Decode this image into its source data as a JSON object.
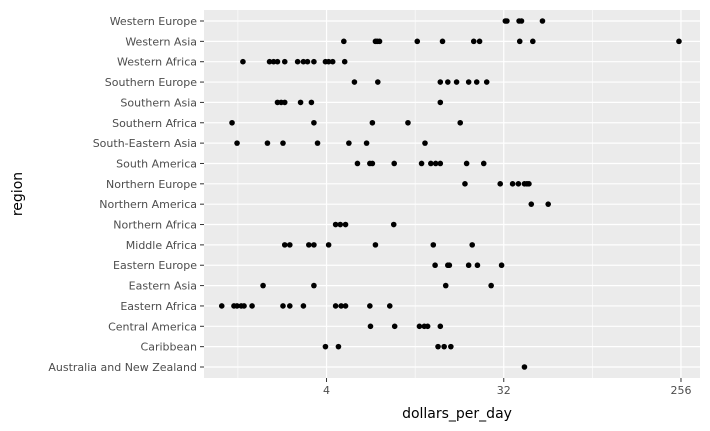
{
  "chart_data": {
    "type": "scatter",
    "xlabel": "dollars_per_day",
    "ylabel": "region",
    "x_scale": "log2",
    "xlim": [
      0.95,
      320
    ],
    "x_ticks": [
      4,
      32,
      256
    ],
    "grid": true,
    "colors": {
      "panel": "#ebebeb",
      "grid_major": "#ffffff",
      "point": "#000000",
      "tick_label": "#4d4d4d",
      "tick": "#333333"
    },
    "categories": [
      "Australia and New Zealand",
      "Caribbean",
      "Central America",
      "Eastern Africa",
      "Eastern Asia",
      "Eastern Europe",
      "Middle Africa",
      "Northern Africa",
      "Northern America",
      "Northern Europe",
      "South America",
      "South-Eastern Asia",
      "Southern Africa",
      "Southern Asia",
      "Southern Europe",
      "Western Africa",
      "Western Asia",
      "Western Europe"
    ],
    "values": {
      "Australia and New Zealand": [
        40.8
      ],
      "Caribbean": [
        3.95,
        4.6,
        14.8,
        15.9,
        17.2
      ],
      "Central America": [
        6.7,
        8.9,
        11.9,
        12.6,
        13.1,
        15.2
      ],
      "Eastern Africa": [
        1.17,
        1.35,
        1.4,
        1.47,
        1.52,
        1.67,
        2.4,
        2.6,
        3.05,
        4.45,
        4.75,
        5.0,
        6.65,
        8.4
      ],
      "Eastern Asia": [
        1.9,
        3.45,
        16.2,
        27.6
      ],
      "Eastern Europe": [
        14.3,
        16.6,
        16.9,
        21.2,
        23.5,
        31.2
      ],
      "Middle Africa": [
        2.45,
        2.6,
        3.25,
        3.45,
        4.1,
        7.1,
        14.0,
        22.1
      ],
      "Northern Africa": [
        4.45,
        4.7,
        5.0,
        8.8
      ],
      "Northern America": [
        44.2,
        53.9
      ],
      "Northern Europe": [
        20.3,
        30.7,
        35.5,
        38.0,
        40.8,
        42.0,
        43.0
      ],
      "South America": [
        5.75,
        6.65,
        6.85,
        8.85,
        12.2,
        13.6,
        14.4,
        15.2,
        20.7,
        25.3
      ],
      "South-Eastern Asia": [
        1.4,
        2.0,
        2.4,
        3.6,
        5.2,
        6.4,
        12.7
      ],
      "Southern Africa": [
        1.32,
        3.45,
        6.85,
        10.4,
        19.2
      ],
      "Southern Asia": [
        2.25,
        2.35,
        2.45,
        2.95,
        3.35,
        15.2
      ],
      "Southern Europe": [
        5.55,
        7.3,
        15.2,
        16.6,
        18.4,
        21.2,
        23.3,
        26.2
      ],
      "Western Africa": [
        1.5,
        2.05,
        2.15,
        2.25,
        2.45,
        2.85,
        3.05,
        3.2,
        3.45,
        3.95,
        4.1,
        4.3,
        4.95
      ],
      "Western Asia": [
        4.9,
        7.1,
        7.25,
        7.45,
        11.6,
        15.6,
        22.5,
        24.1,
        38.6,
        45.0,
        250.0
      ],
      "Western Europe": [
        32.6,
        33.2,
        38.3,
        39.4,
        50.4
      ]
    }
  }
}
